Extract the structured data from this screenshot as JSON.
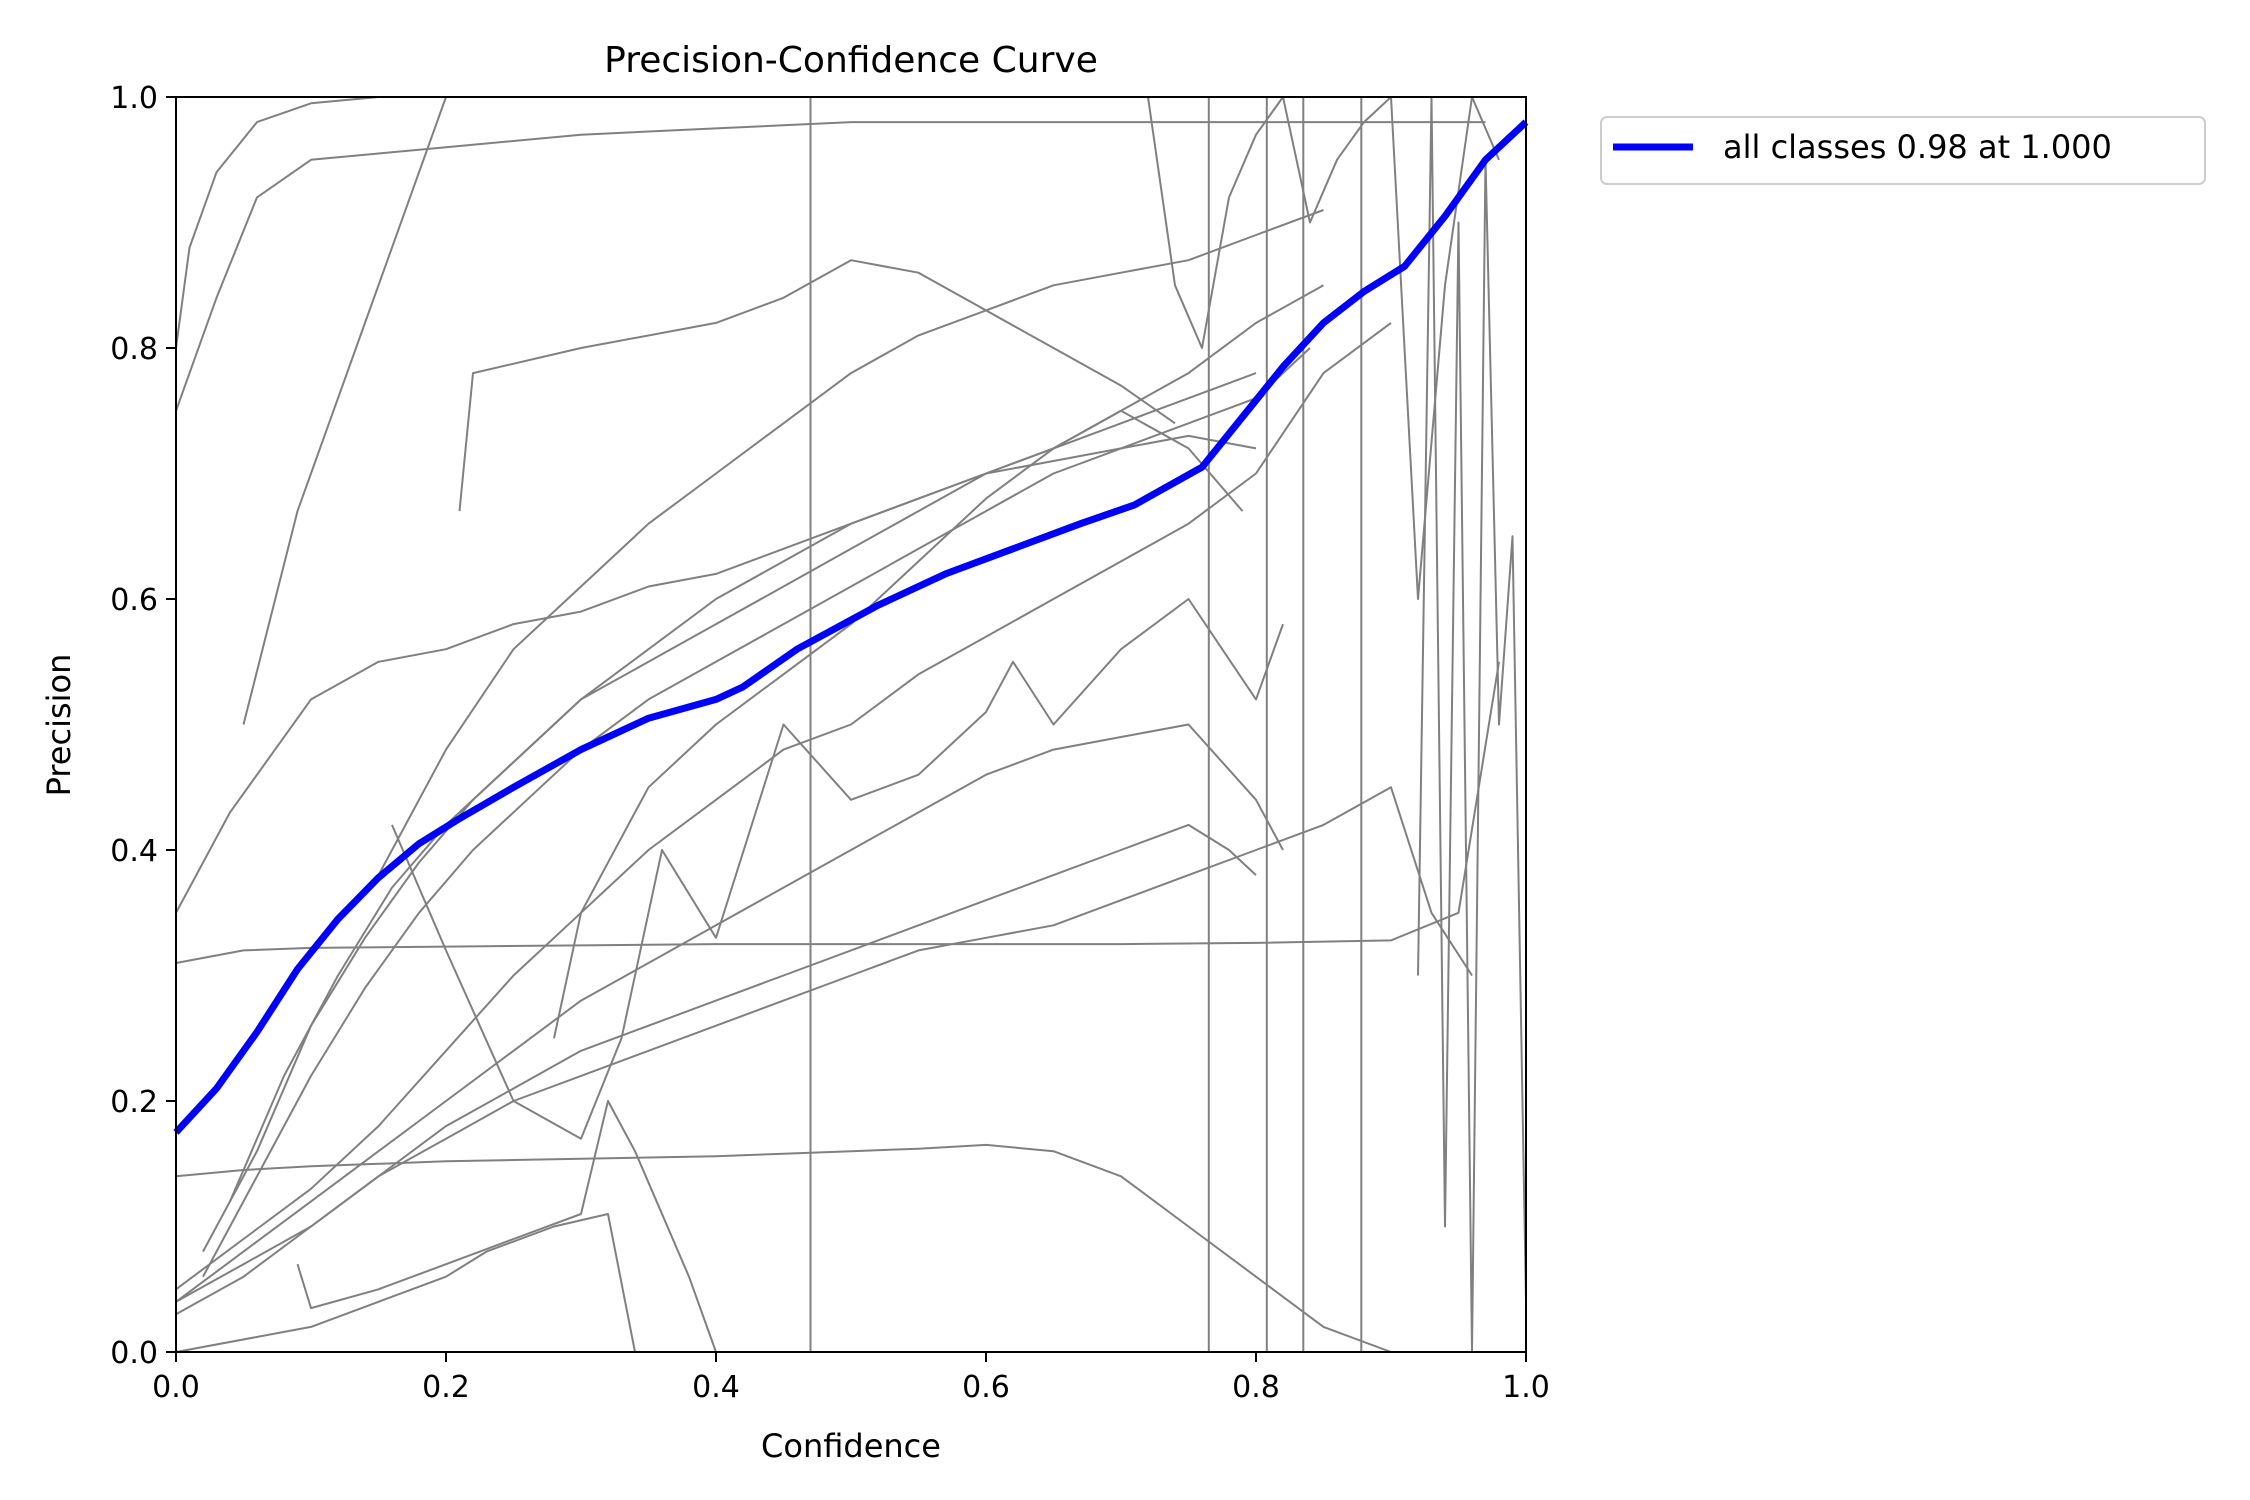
{
  "chart_data": {
    "type": "line",
    "title": "Precision-Confidence Curve",
    "xlabel": "Confidence",
    "ylabel": "Precision",
    "xlim": [
      0,
      1
    ],
    "ylim": [
      0,
      1
    ],
    "x_ticks": [
      "0.0",
      "0.2",
      "0.4",
      "0.6",
      "0.8",
      "1.0"
    ],
    "y_ticks": [
      "0.0",
      "0.2",
      "0.4",
      "0.6",
      "0.8",
      "1.0"
    ],
    "grid": false,
    "legend_position": "outside-top-right",
    "colors": {
      "class_curves": "#808080",
      "all_classes": "#0000ff"
    },
    "series": [
      {
        "name": "all classes 0.98 at 1.000",
        "color": "#0000ff",
        "x": [
          0.0,
          0.03,
          0.06,
          0.09,
          0.12,
          0.15,
          0.18,
          0.21,
          0.25,
          0.3,
          0.35,
          0.4,
          0.42,
          0.46,
          0.52,
          0.57,
          0.62,
          0.67,
          0.71,
          0.76,
          0.79,
          0.82,
          0.85,
          0.88,
          0.91,
          0.94,
          0.97,
          1.0
        ],
        "y": [
          0.175,
          0.21,
          0.255,
          0.305,
          0.345,
          0.378,
          0.405,
          0.425,
          0.45,
          0.48,
          0.505,
          0.52,
          0.53,
          0.56,
          0.595,
          0.62,
          0.64,
          0.66,
          0.675,
          0.705,
          0.745,
          0.785,
          0.82,
          0.845,
          0.865,
          0.905,
          0.95,
          0.98
        ]
      },
      {
        "x": [
          0.0,
          0.01,
          0.03,
          0.06,
          0.1,
          0.15,
          0.2,
          0.3,
          0.4
        ],
        "y": [
          0.8,
          0.88,
          0.94,
          0.98,
          0.995,
          1.0,
          1.0,
          1.0,
          1.0
        ]
      },
      {
        "x": [
          0.0,
          0.03,
          0.06,
          0.1,
          0.15,
          0.2,
          0.3,
          0.4,
          0.5,
          0.6,
          0.7,
          0.8,
          0.9,
          0.97
        ],
        "y": [
          0.75,
          0.84,
          0.92,
          0.95,
          0.955,
          0.96,
          0.97,
          0.975,
          0.98,
          0.98,
          0.98,
          0.98,
          0.98,
          0.98
        ]
      },
      {
        "x": [
          0.05,
          0.09,
          0.14,
          0.2
        ],
        "y": [
          0.5,
          0.67,
          0.82,
          1.0
        ]
      },
      {
        "x": [
          0.0,
          0.04,
          0.1,
          0.15,
          0.2,
          0.25,
          0.3,
          0.35,
          0.4,
          0.45,
          0.5,
          0.55,
          0.6,
          0.65,
          0.7,
          0.75,
          0.8
        ],
        "y": [
          0.35,
          0.43,
          0.52,
          0.55,
          0.56,
          0.58,
          0.59,
          0.61,
          0.62,
          0.64,
          0.66,
          0.68,
          0.7,
          0.71,
          0.72,
          0.73,
          0.72
        ]
      },
      {
        "x": [
          0.21,
          0.22,
          0.3,
          0.4,
          0.45,
          0.5,
          0.55,
          0.6,
          0.65,
          0.7,
          0.74
        ],
        "y": [
          0.67,
          0.78,
          0.8,
          0.82,
          0.84,
          0.87,
          0.86,
          0.83,
          0.8,
          0.77,
          0.74
        ]
      },
      {
        "x": [
          0.15,
          0.2,
          0.25,
          0.3,
          0.35,
          0.4,
          0.45,
          0.5,
          0.55,
          0.6,
          0.65,
          0.7,
          0.75,
          0.8,
          0.85
        ],
        "y": [
          0.38,
          0.48,
          0.56,
          0.61,
          0.66,
          0.7,
          0.74,
          0.78,
          0.81,
          0.83,
          0.85,
          0.86,
          0.87,
          0.89,
          0.91
        ]
      },
      {
        "x": [
          0.04,
          0.08,
          0.12,
          0.16,
          0.2,
          0.25,
          0.3,
          0.35,
          0.4,
          0.45,
          0.5,
          0.55,
          0.6,
          0.65,
          0.7,
          0.75,
          0.8,
          0.85
        ],
        "y": [
          0.12,
          0.22,
          0.3,
          0.37,
          0.42,
          0.47,
          0.52,
          0.55,
          0.58,
          0.61,
          0.64,
          0.67,
          0.7,
          0.72,
          0.75,
          0.78,
          0.82,
          0.85
        ]
      },
      {
        "x": [
          0.02,
          0.06,
          0.1,
          0.14,
          0.18,
          0.22,
          0.26,
          0.3,
          0.35,
          0.4,
          0.45,
          0.5,
          0.55,
          0.6,
          0.65,
          0.7,
          0.75,
          0.8
        ],
        "y": [
          0.08,
          0.16,
          0.26,
          0.33,
          0.39,
          0.44,
          0.48,
          0.52,
          0.56,
          0.6,
          0.63,
          0.66,
          0.68,
          0.7,
          0.72,
          0.74,
          0.76,
          0.78
        ]
      },
      {
        "x": [
          0.02,
          0.06,
          0.1,
          0.14,
          0.18,
          0.22,
          0.26,
          0.3,
          0.35,
          0.4,
          0.45,
          0.5,
          0.55,
          0.6,
          0.65,
          0.7,
          0.75,
          0.8,
          0.84
        ],
        "y": [
          0.06,
          0.14,
          0.22,
          0.29,
          0.35,
          0.4,
          0.44,
          0.48,
          0.52,
          0.55,
          0.58,
          0.61,
          0.64,
          0.67,
          0.7,
          0.72,
          0.74,
          0.76,
          0.8
        ]
      },
      {
        "x": [
          0.0,
          0.05,
          0.1,
          0.15,
          0.2,
          0.25,
          0.3,
          0.35,
          0.4,
          0.45,
          0.5,
          0.55,
          0.6,
          0.65,
          0.7,
          0.75,
          0.8,
          0.85,
          0.9
        ],
        "y": [
          0.05,
          0.09,
          0.13,
          0.18,
          0.24,
          0.3,
          0.35,
          0.4,
          0.44,
          0.48,
          0.5,
          0.54,
          0.57,
          0.6,
          0.63,
          0.66,
          0.7,
          0.78,
          0.82
        ]
      },
      {
        "x": [
          0.0,
          0.05,
          0.1,
          0.15,
          0.2,
          0.25,
          0.3,
          0.35,
          0.4,
          0.45,
          0.5,
          0.55,
          0.6,
          0.65,
          0.7,
          0.75,
          0.8,
          0.82
        ],
        "y": [
          0.04,
          0.08,
          0.12,
          0.16,
          0.2,
          0.24,
          0.28,
          0.31,
          0.34,
          0.37,
          0.4,
          0.43,
          0.46,
          0.48,
          0.49,
          0.5,
          0.44,
          0.4
        ]
      },
      {
        "x": [
          0.0,
          0.05,
          0.1,
          0.15,
          0.2,
          0.25,
          0.3,
          0.35,
          0.4,
          0.45,
          0.5,
          0.55,
          0.6,
          0.65,
          0.7,
          0.75,
          0.78,
          0.8
        ],
        "y": [
          0.04,
          0.07,
          0.1,
          0.14,
          0.18,
          0.21,
          0.24,
          0.26,
          0.28,
          0.3,
          0.32,
          0.34,
          0.36,
          0.38,
          0.4,
          0.42,
          0.4,
          0.38
        ]
      },
      {
        "x": [
          0.0,
          0.05,
          0.1,
          0.15,
          0.2,
          0.25,
          0.3,
          0.35,
          0.4,
          0.45,
          0.5,
          0.55,
          0.6,
          0.65,
          0.7,
          0.75,
          0.8,
          0.85,
          0.9,
          0.93,
          0.96
        ],
        "y": [
          0.03,
          0.06,
          0.1,
          0.14,
          0.17,
          0.2,
          0.22,
          0.24,
          0.26,
          0.28,
          0.3,
          0.32,
          0.33,
          0.34,
          0.36,
          0.38,
          0.4,
          0.42,
          0.45,
          0.35,
          0.3
        ]
      },
      {
        "x": [
          0.0,
          0.05,
          0.1,
          0.15,
          0.2,
          0.25,
          0.3,
          0.35,
          0.4,
          0.45,
          0.5,
          0.55,
          0.6,
          0.65,
          0.7,
          0.75,
          0.8,
          0.85,
          0.9
        ],
        "y": [
          0.14,
          0.145,
          0.148,
          0.15,
          0.152,
          0.153,
          0.154,
          0.155,
          0.156,
          0.158,
          0.16,
          0.162,
          0.165,
          0.16,
          0.14,
          0.1,
          0.06,
          0.02,
          0.0
        ]
      },
      {
        "x": [
          0.0,
          0.05,
          0.1,
          0.2,
          0.3,
          0.4,
          0.5,
          0.6,
          0.7,
          0.8,
          0.9,
          0.95,
          0.98
        ],
        "y": [
          0.31,
          0.32,
          0.322,
          0.323,
          0.324,
          0.325,
          0.325,
          0.325,
          0.325,
          0.326,
          0.328,
          0.35,
          0.55
        ]
      },
      {
        "x": [
          0.09,
          0.1,
          0.15,
          0.2,
          0.25,
          0.3,
          0.32,
          0.34,
          0.38,
          0.4
        ],
        "y": [
          0.07,
          0.035,
          0.05,
          0.07,
          0.09,
          0.11,
          0.2,
          0.16,
          0.06,
          0.0
        ]
      },
      {
        "x": [
          0.0,
          0.1,
          0.15,
          0.2,
          0.23,
          0.28,
          0.32,
          0.34
        ],
        "y": [
          0.0,
          0.02,
          0.04,
          0.06,
          0.08,
          0.1,
          0.11,
          0.0
        ]
      },
      {
        "x": [
          0.28,
          0.3,
          0.35,
          0.4,
          0.45,
          0.5,
          0.55,
          0.6,
          0.65,
          0.7,
          0.75,
          0.79
        ],
        "y": [
          0.25,
          0.35,
          0.45,
          0.5,
          0.54,
          0.58,
          0.63,
          0.68,
          0.72,
          0.75,
          0.72,
          0.67
        ]
      },
      {
        "x": [
          0.16,
          0.2,
          0.25,
          0.3,
          0.33,
          0.36,
          0.4,
          0.45,
          0.5,
          0.55,
          0.6,
          0.62,
          0.65,
          0.7,
          0.75,
          0.8,
          0.82
        ],
        "y": [
          0.42,
          0.32,
          0.2,
          0.17,
          0.25,
          0.4,
          0.33,
          0.5,
          0.44,
          0.46,
          0.51,
          0.55,
          0.5,
          0.56,
          0.6,
          0.52,
          0.58
        ]
      },
      {
        "x": [
          0.72,
          0.74,
          0.76,
          0.78,
          0.8,
          0.82,
          0.84,
          0.86,
          0.88,
          0.9,
          0.92,
          0.94,
          0.96,
          0.98
        ],
        "y": [
          1.0,
          0.85,
          0.8,
          0.92,
          0.97,
          1.0,
          0.9,
          0.95,
          0.98,
          1.0,
          0.6,
          0.85,
          1.0,
          0.95
        ]
      },
      {
        "x": [
          0.47,
          0.47
        ],
        "y": [
          0.0,
          1.0
        ]
      },
      {
        "x": [
          0.765,
          0.765
        ],
        "y": [
          0.0,
          1.0
        ]
      },
      {
        "x": [
          0.808,
          0.808
        ],
        "y": [
          0.0,
          1.0
        ]
      },
      {
        "x": [
          0.835,
          0.835
        ],
        "y": [
          0.0,
          1.0
        ]
      },
      {
        "x": [
          0.878,
          0.878
        ],
        "y": [
          0.0,
          1.0
        ]
      },
      {
        "x": [
          0.92,
          0.93,
          0.94,
          0.95,
          0.96,
          0.97,
          0.98,
          0.99,
          1.0
        ],
        "y": [
          0.3,
          1.0,
          0.1,
          0.9,
          0.0,
          0.95,
          0.5,
          0.65,
          0.04
        ]
      }
    ]
  }
}
